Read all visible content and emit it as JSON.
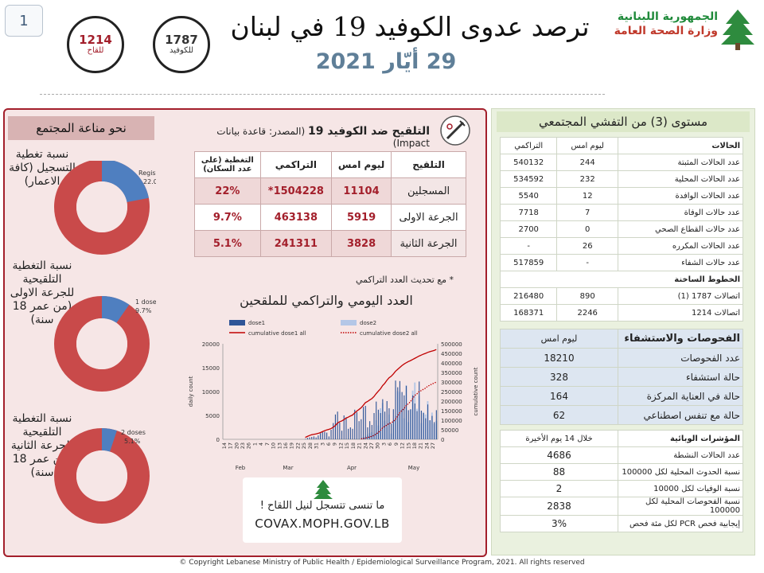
{
  "page_number": "1",
  "hotlines": [
    {
      "number": "1214",
      "label": "للقاح",
      "color": "#a31f2b"
    },
    {
      "number": "1787",
      "label": "للكوفيد",
      "color": "#333333"
    }
  ],
  "title": "ترصد عدوى الكوفيد 19 في لبنان",
  "date": "29 أيّار 2021",
  "ministry": {
    "line1": "الجمهورية اللبنانية",
    "line2": "وزارة الصحة العامة"
  },
  "herd": {
    "title": "نحو مناعة المجتمع",
    "donuts": [
      {
        "label": "نسبة تغطية التسجيل (كافة الاعمار)",
        "slice_label": "Registered",
        "percent_text": "22.0%",
        "value": 22.0
      },
      {
        "label": "نسبة التغطية التلقيحية للجرعة الاولى (من عمر 18 سنة)",
        "slice_label": "1 dose",
        "percent_text": "9.7%",
        "value": 9.7
      },
      {
        "label": "نسبة التغطية التلقيحية للجرعة الثانية (من عمر 18 سنة)",
        "slice_label": "2 doses",
        "percent_text": "5.1%",
        "value": 5.1
      }
    ]
  },
  "vaccination": {
    "title": "التلقيح ضد الكوفيد 19",
    "source": "(المصدر: قاعدة بيانات Impact)",
    "headers": [
      "التلقيح",
      "ليوم امس",
      "التراكمي",
      "التغطية (على عدد السكان)"
    ],
    "rows": [
      [
        "المسجلين",
        "11104",
        "1504228*",
        "22%"
      ],
      [
        "الجرعة الاولى",
        "5919",
        "463138",
        "9.7%"
      ],
      [
        "الجرعة الثانية",
        "3828",
        "241311",
        "5.1%"
      ]
    ],
    "note": "* مع تحديث العدد التراكمي"
  },
  "chart_data": {
    "type": "bar",
    "title": "العدد اليومي والتراكمي للملقحين",
    "ylabel": "daily count",
    "y2label": "cumulative count",
    "ylim": [
      0,
      20000
    ],
    "y2lim": [
      0,
      500000
    ],
    "yticks": [
      "0",
      "5000",
      "10000",
      "15000",
      "20000"
    ],
    "y2ticks": [
      "0",
      "50000",
      "100000",
      "150000",
      "200000",
      "250000",
      "300000",
      "350000",
      "400000",
      "450000",
      "500000"
    ],
    "xticks": [
      "14",
      "17",
      "20",
      "23",
      "26",
      "1",
      "4",
      "7",
      "10",
      "13",
      "16",
      "19",
      "22",
      "25",
      "28",
      "31",
      "3",
      "6",
      "9",
      "12",
      "15",
      "18",
      "21",
      "24",
      "27",
      "30",
      "3",
      "6",
      "9",
      "12",
      "15",
      "18",
      "21",
      "24",
      "27"
    ],
    "months": [
      "Feb",
      "Mar",
      "Apr",
      "May"
    ],
    "legend": [
      "dose1",
      "dose2",
      "cumulative dose1 all",
      "cumulative dose2 all"
    ],
    "colors": {
      "dose1": "#2f5597",
      "dose2": "#b4c7e7",
      "cum1": "#c00000",
      "cum2": "#c00000"
    },
    "series": [
      {
        "name": "dose1",
        "values": [
          0,
          0,
          0,
          0,
          0,
          0,
          0,
          0,
          0,
          0,
          0,
          0,
          0,
          0,
          0,
          0,
          0,
          0,
          0,
          0,
          0,
          0,
          0,
          0,
          0,
          0,
          0,
          0,
          0,
          0,
          0,
          0,
          0,
          0,
          0,
          0,
          0,
          0,
          100,
          300,
          400,
          500,
          600,
          400,
          800,
          1300,
          1500,
          1600,
          1400,
          600,
          2000,
          3400,
          5200,
          5800,
          3500,
          1800,
          5000,
          4600,
          2200,
          2500,
          2200,
          6200,
          5700,
          3800,
          4200,
          6800,
          7000,
          2500,
          3800,
          3000,
          5500,
          7900,
          6200,
          5500,
          8400,
          5800,
          8000,
          6500,
          3300,
          6300,
          12300,
          10900,
          12200,
          9900,
          9200,
          11200,
          6100,
          6300,
          9200,
          7500,
          5900,
          12100,
          6000,
          5500,
          4400,
          7300,
          4000,
          4900,
          3600,
          6100
        ]
      },
      {
        "name": "dose2",
        "values": [
          0,
          0,
          0,
          0,
          0,
          0,
          0,
          0,
          0,
          0,
          0,
          0,
          0,
          0,
          0,
          0,
          0,
          0,
          0,
          0,
          0,
          0,
          0,
          0,
          0,
          0,
          0,
          0,
          0,
          0,
          0,
          0,
          0,
          0,
          0,
          0,
          0,
          0,
          0,
          0,
          0,
          0,
          0,
          0,
          0,
          0,
          0,
          0,
          0,
          0,
          0,
          0,
          0,
          0,
          0,
          0,
          0,
          0,
          0,
          0,
          0,
          0,
          0,
          0,
          100,
          500,
          600,
          1000,
          1300,
          1500,
          1100,
          4000,
          2900,
          6500,
          7600,
          3900,
          2500,
          5200,
          1200,
          3900,
          4900,
          10100,
          9900,
          6300,
          4400,
          11300,
          3600,
          6200,
          10200,
          11900,
          6400,
          9100,
          3400,
          5700,
          5200,
          8000,
          3900,
          5600,
          3200,
          3800
        ]
      },
      {
        "name": "cumulative dose1 all",
        "values": [
          0,
          0,
          0,
          0,
          0,
          0,
          0,
          0,
          0,
          0,
          0,
          0,
          0,
          0,
          0,
          0,
          0,
          0,
          0,
          0,
          0,
          0,
          0,
          0,
          0,
          0,
          0,
          0,
          0,
          0,
          0,
          0,
          0,
          0,
          0,
          0,
          0,
          0,
          10000,
          15000,
          20000,
          24000,
          26000,
          28000,
          31000,
          35000,
          40000,
          45000,
          49000,
          52000,
          56000,
          63000,
          72000,
          85000,
          92000,
          96000,
          103000,
          111000,
          116000,
          122000,
          127000,
          138000,
          148000,
          156000,
          165000,
          178000,
          192000,
          198000,
          206000,
          213000,
          224000,
          239000,
          252000,
          264000,
          281000,
          293000,
          309000,
          322000,
          330000,
          342000,
          356000,
          366000,
          376000,
          386000,
          394000,
          401000,
          407000,
          412000,
          418000,
          424000,
          430000,
          436000,
          441000,
          446000,
          450000,
          455000,
          459000,
          462000,
          465000,
          470000
        ]
      },
      {
        "name": "cumulative dose2 all",
        "values": [
          0,
          0,
          0,
          0,
          0,
          0,
          0,
          0,
          0,
          0,
          0,
          0,
          0,
          0,
          0,
          0,
          0,
          0,
          0,
          0,
          0,
          0,
          0,
          0,
          0,
          0,
          0,
          0,
          0,
          0,
          0,
          0,
          0,
          0,
          0,
          0,
          0,
          0,
          0,
          0,
          0,
          0,
          0,
          0,
          0,
          0,
          0,
          0,
          0,
          0,
          0,
          0,
          0,
          0,
          0,
          0,
          0,
          0,
          0,
          0,
          0,
          0,
          0,
          0,
          2000,
          4000,
          6000,
          9000,
          12000,
          16000,
          20000,
          28000,
          35000,
          47000,
          60000,
          68000,
          74000,
          83000,
          86000,
          94000,
          104000,
          122000,
          139000,
          151000,
          160000,
          178000,
          186000,
          198000,
          213000,
          230000,
          238000,
          250000,
          255000,
          262000,
          268000,
          278000,
          283000,
          290000,
          294000,
          300000
        ]
      }
    ]
  },
  "promo": {
    "line1": "ما تنسى تتسجل لنيل اللقاح !",
    "line2": "COVAX.MOPH.GOV.LB"
  },
  "right": {
    "title": "مستوى (3) من التفشي المجتمعي",
    "cases_header": [
      "الحالات",
      "ليوم امس",
      "التراكمي"
    ],
    "cases": [
      [
        "عدد الحالات المثبتة",
        "244",
        "540132"
      ],
      [
        "عدد الحالات المحلية",
        "232",
        "534592"
      ],
      [
        "عدد الحالات الوافدة",
        "12",
        "5540"
      ],
      [
        "عدد حالات الوفاة",
        "7",
        "7718"
      ],
      [
        "عدد حالات القطاع الصحي",
        "0",
        "2700"
      ],
      [
        "عدد الحالات المكرره",
        "26",
        "-"
      ],
      [
        "عدد حالات الشفاء",
        "-",
        "517859"
      ]
    ],
    "hotlines_header": "الخطوط الساخنة",
    "hotline_rows": [
      [
        "اتصالات 1787 (1)",
        "890",
        "216480"
      ],
      [
        "اتصالات 1214",
        "2246",
        "168371"
      ]
    ],
    "hosp_header": [
      "الفحوصات والاستشفاء",
      "ليوم امس"
    ],
    "hosp": [
      [
        "عدد الفحوصات",
        "18210"
      ],
      [
        "حالة استشفاء",
        "328"
      ],
      [
        "حالة في العناية المركزة",
        "164"
      ],
      [
        "حالة مع تنفس اصطناعي",
        "62"
      ]
    ],
    "epi_header": [
      "المؤشرات الوبائية",
      "خلال 14 يوم الأخيرة"
    ],
    "epi": [
      [
        "عدد الحالات النشطة",
        "4686"
      ],
      [
        "نسبة الحدوث المحلية لكل 100000",
        "88"
      ],
      [
        "نسبة الوفيات لكل 10000",
        "2"
      ],
      [
        "نسبة الفحوصات المحلية لكل 100000",
        "2838"
      ],
      [
        "إيجابية فحص PCR لكل مئة فحص",
        "3%"
      ]
    ]
  },
  "footer": "© Copyright Lebanese Ministry of Public Health / Epidemiological Surveillance Program, 2021. All rights reserved"
}
